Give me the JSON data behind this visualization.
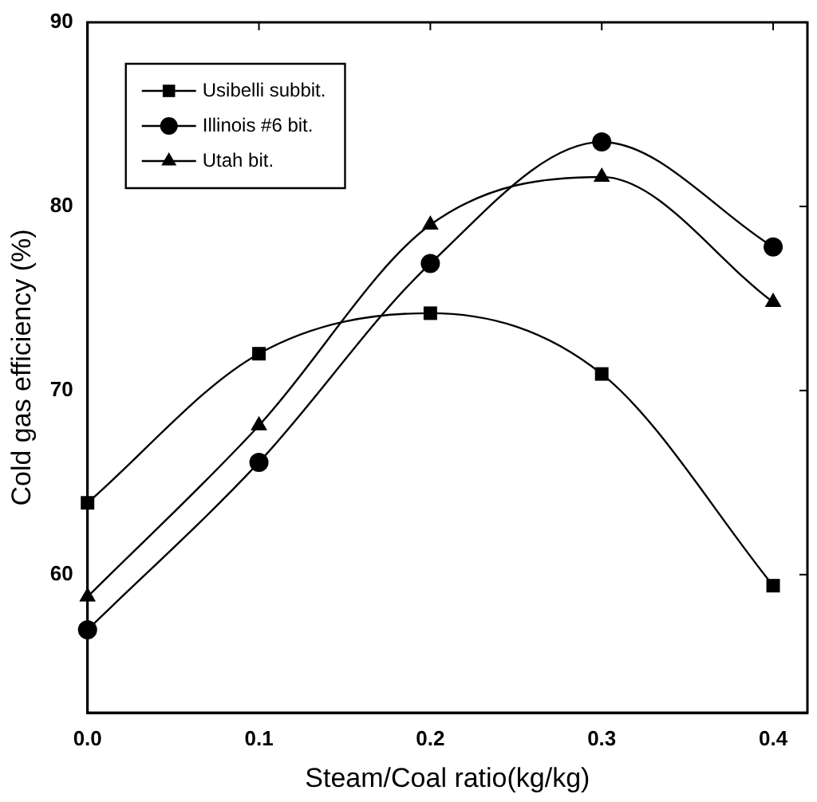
{
  "chart_data": {
    "type": "line",
    "xlabel": "Steam/Coal ratio(kg/kg)",
    "ylabel": "Cold gas efficiency (%)",
    "x": [
      0,
      0.1,
      0.2,
      0.3,
      0.4
    ],
    "xlim": [
      0,
      0.42
    ],
    "xticks": [
      {
        "value": 0,
        "label": "0.0"
      },
      0.1,
      0.2,
      0.3,
      0.4
    ],
    "ylim": [
      52.5,
      90
    ],
    "yticks": [
      60,
      70,
      80,
      90
    ],
    "grid": false,
    "legend": "top left",
    "line_style": "solid",
    "series": [
      {
        "name": "Usibelli subbit.",
        "color": "#000000",
        "marker": "square",
        "values": [
          63.9,
          72.0,
          74.2,
          70.9,
          59.4
        ]
      },
      {
        "name": "Illinois #6 bit.",
        "color": "#000000",
        "marker": "circle",
        "values": [
          57.0,
          66.1,
          76.9,
          83.5,
          77.8
        ]
      },
      {
        "name": "Utah bit.",
        "color": "#000000",
        "marker": "triangle",
        "values": [
          58.8,
          68.1,
          79.0,
          81.6,
          74.8
        ]
      }
    ]
  }
}
